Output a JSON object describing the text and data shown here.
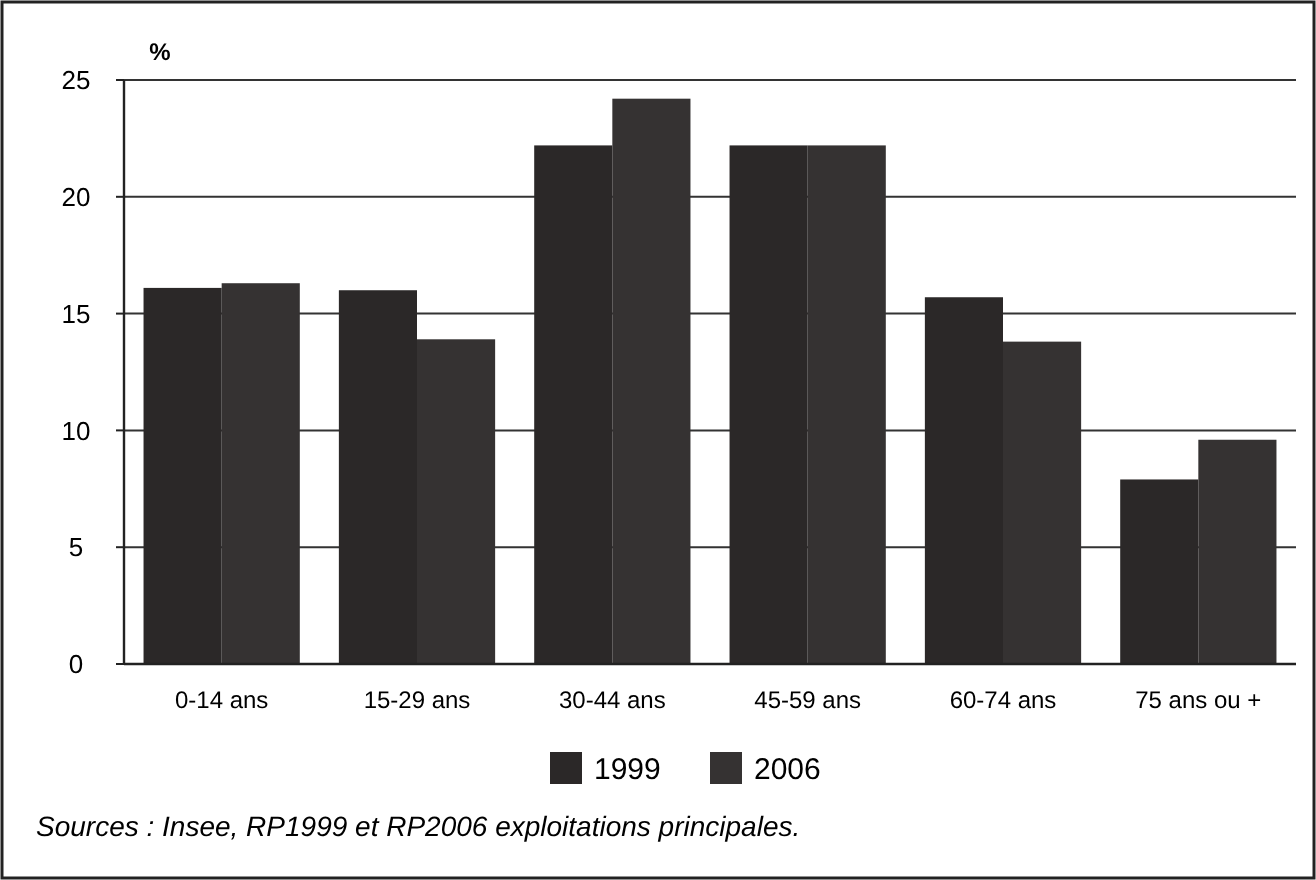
{
  "chart_data": {
    "type": "bar",
    "ylabel": "%",
    "categories": [
      "0-14 ans",
      "15-29 ans",
      "30-44 ans",
      "45-59 ans",
      "60-74 ans",
      "75 ans ou +"
    ],
    "series": [
      {
        "name": "1999",
        "color": "#2b2828",
        "values": [
          16.1,
          16.0,
          22.2,
          22.2,
          15.7,
          7.9
        ]
      },
      {
        "name": "2006",
        "color": "#353232",
        "values": [
          16.3,
          13.9,
          24.2,
          22.2,
          13.8,
          9.6
        ]
      }
    ],
    "ylim": [
      0,
      25
    ],
    "yticks": [
      0,
      5,
      10,
      15,
      20,
      25
    ],
    "grid": "y",
    "legend": "bottom",
    "annotations": [
      "Sources : Insee, RP1999 et RP2006 exploitations principales."
    ]
  }
}
